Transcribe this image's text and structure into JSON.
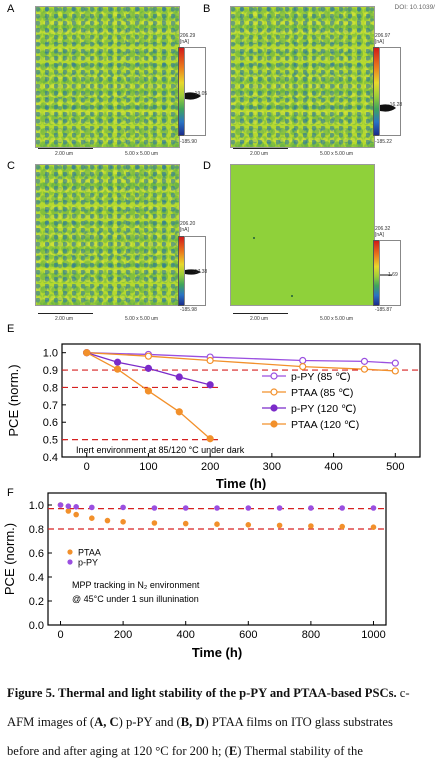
{
  "header": {
    "doi": "DOI: 10.1039/"
  },
  "afm": {
    "panels": [
      {
        "label": "A",
        "max": "206.29",
        "max_unit": "[nA]",
        "mid": "-19.05",
        "min": "-185.90",
        "scale": "2.00 um",
        "size": "5.00 x 5.00 um"
      },
      {
        "label": "B",
        "max": "206.97",
        "max_unit": "[nA]",
        "mid": "-16.28",
        "min": "-185.22",
        "scale": "2.00 um",
        "size": "5.00 x 5.00 um"
      },
      {
        "label": "C",
        "max": "206.20",
        "max_unit": "[nA]",
        "mid": "-17.38",
        "min": "-185.98",
        "scale": "2.00 um",
        "size": "5.00 x 5.00 um"
      },
      {
        "label": "D",
        "max": "206.32",
        "max_unit": "[nA]",
        "mid": "1.69",
        "min": "-185.87",
        "scale": "2.00 um",
        "size": "5.00 x 5.00 um"
      }
    ]
  },
  "chart_data": [
    {
      "id": "E",
      "type": "line",
      "xlabel": "Time (h)",
      "ylabel": "PCE (norm.)",
      "xlim": [
        -40,
        540
      ],
      "ylim": [
        0.4,
        1.05
      ],
      "xticks": [
        0,
        100,
        200,
        300,
        400,
        500
      ],
      "yticks": [
        0.4,
        0.5,
        0.6,
        0.7,
        0.8,
        0.9,
        1.0
      ],
      "annotation": "Inert environment at 85/120 °C under dark",
      "legend_position": "right",
      "reference_lines": [
        {
          "y": 0.9,
          "x": [
            -40,
            540
          ]
        },
        {
          "y": 0.8,
          "x": [
            -40,
            215
          ]
        },
        {
          "y": 0.5,
          "x": [
            -40,
            215
          ]
        }
      ],
      "series": [
        {
          "name": "p-PY (85 ℃)",
          "color": "#9a4fe0",
          "hollow": true,
          "x": [
            0,
            100,
            200,
            350,
            450,
            500
          ],
          "y": [
            1.0,
            0.99,
            0.975,
            0.955,
            0.95,
            0.94
          ],
          "err": [
            0.015,
            0.015,
            0.015,
            0.015,
            0.015,
            0.015
          ]
        },
        {
          "name": "PTAA (85 ℃)",
          "color": "#f2902b",
          "hollow": true,
          "x": [
            0,
            100,
            200,
            350,
            450,
            500
          ],
          "y": [
            1.0,
            0.98,
            0.955,
            0.92,
            0.905,
            0.895
          ],
          "err": [
            0.015,
            0.015,
            0.015,
            0.015,
            0.015,
            0.015
          ]
        },
        {
          "name": "p-PY (120 ℃)",
          "color": "#7b2bc9",
          "hollow": false,
          "x": [
            0,
            50,
            100,
            150,
            200
          ],
          "y": [
            1.0,
            0.945,
            0.91,
            0.86,
            0.815
          ],
          "err": [
            0.012,
            0.012,
            0.015,
            0.015,
            0.02
          ]
        },
        {
          "name": "PTAA (120 ℃)",
          "color": "#f2902b",
          "hollow": false,
          "x": [
            0,
            50,
            100,
            150,
            200
          ],
          "y": [
            1.0,
            0.905,
            0.78,
            0.66,
            0.505
          ],
          "err": [
            0.012,
            0.012,
            0.02,
            0.02,
            0.015
          ]
        }
      ]
    },
    {
      "id": "F",
      "type": "scatter",
      "xlabel": "Time (h)",
      "ylabel": "PCE (norm.)",
      "xlim": [
        -40,
        1040
      ],
      "ylim": [
        0.0,
        1.1
      ],
      "xticks": [
        0,
        200,
        400,
        600,
        800,
        1000
      ],
      "yticks": [
        0.0,
        0.2,
        0.4,
        0.6,
        0.8,
        1.0
      ],
      "annotation_lines": [
        "MPP tracking in N₂ environment",
        "@ 45°C under 1 sun illunination"
      ],
      "legend_position": "left",
      "reference_lines": [
        {
          "y": 0.97,
          "x": [
            -40,
            1040
          ]
        },
        {
          "y": 0.8,
          "x": [
            -40,
            1040
          ]
        }
      ],
      "series": [
        {
          "name": "PTAA",
          "color": "#f2902b",
          "x": [
            0,
            25,
            50,
            100,
            150,
            200,
            300,
            400,
            500,
            600,
            700,
            800,
            900,
            1000
          ],
          "y": [
            1.0,
            0.95,
            0.92,
            0.89,
            0.87,
            0.86,
            0.85,
            0.845,
            0.84,
            0.835,
            0.83,
            0.825,
            0.82,
            0.815
          ]
        },
        {
          "name": "p-PY",
          "color": "#9a4fe0",
          "x": [
            0,
            25,
            50,
            100,
            200,
            300,
            400,
            500,
            600,
            700,
            800,
            900,
            1000
          ],
          "y": [
            1.0,
            0.99,
            0.985,
            0.98,
            0.98,
            0.975,
            0.975,
            0.975,
            0.975,
            0.975,
            0.975,
            0.975,
            0.975
          ]
        }
      ]
    }
  ],
  "caption": {
    "line1_bold": "Figure 5. Thermal and light stability of the p-PY and PTAA-based PSCs.",
    "line1_tail": " c-",
    "line2_a": "AFM images of (",
    "line2_b": "A, C",
    "line2_c": ") p-PY and (",
    "line2_d": "B, D",
    "line2_e": ") PTAA films on ITO glass substrates",
    "line3_a": "before and after aging at 120 °C for 200 h; (",
    "line3_b": "E",
    "line3_c": ") Thermal stability of the"
  }
}
